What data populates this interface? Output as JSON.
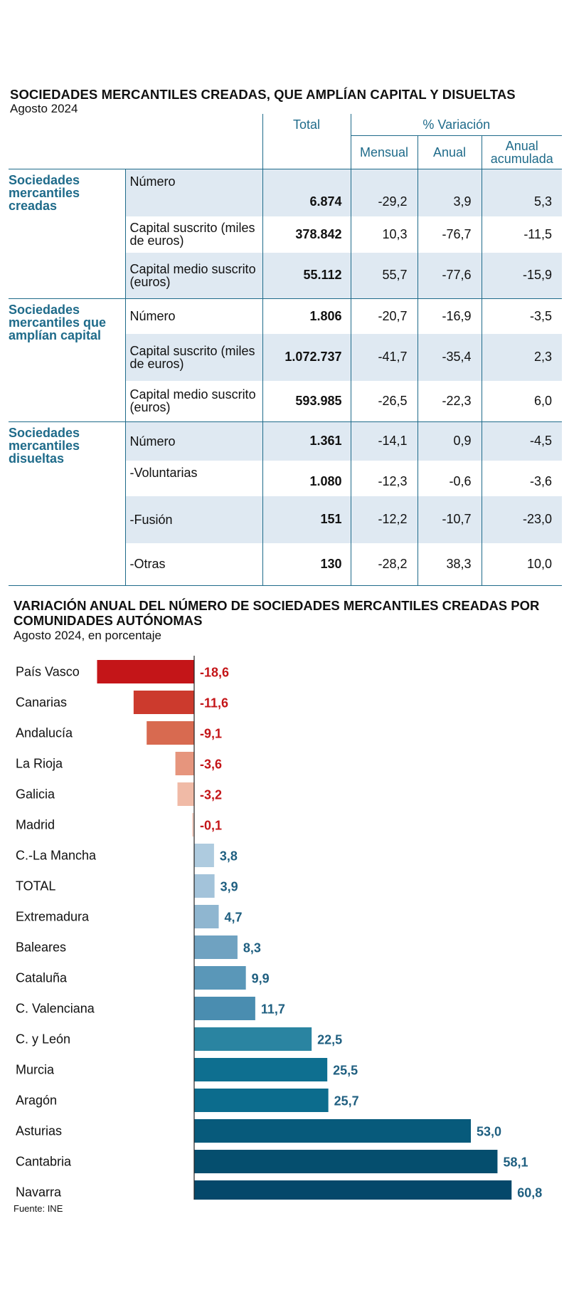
{
  "table": {
    "title": "SOCIEDADES MERCANTILES CREADAS, QUE AMPLÍAN CAPITAL Y DISUELTAS",
    "subtitle": "Agosto 2024",
    "headers": {
      "total": "Total",
      "variacion": "% Variación",
      "mensual": "Mensual",
      "anual": "Anual",
      "anual_acumulada": "Anual acumulada"
    },
    "groups": [
      {
        "name": "Sociedades mercantiles creadas",
        "rows": [
          {
            "label": "Número",
            "total": "6.874",
            "mensual": "-29,2",
            "anual": "3,9",
            "acumulada": "5,3"
          },
          {
            "label": "Capital suscrito (miles de euros)",
            "total": "378.842",
            "mensual": "10,3",
            "anual": "-76,7",
            "acumulada": "-11,5"
          },
          {
            "label": "Capital medio suscrito (euros)",
            "total": "55.112",
            "mensual": "55,7",
            "anual": "-77,6",
            "acumulada": "-15,9"
          }
        ]
      },
      {
        "name": "Sociedades mercantiles que amplían capital",
        "rows": [
          {
            "label": "Número",
            "total": "1.806",
            "mensual": "-20,7",
            "anual": "-16,9",
            "acumulada": "-3,5"
          },
          {
            "label": "Capital suscrito (miles de euros)",
            "total": "1.072.737",
            "mensual": "-41,7",
            "anual": "-35,4",
            "acumulada": "2,3"
          },
          {
            "label": "Capital medio suscrito (euros)",
            "total": "593.985",
            "mensual": "-26,5",
            "anual": "-22,3",
            "acumulada": "6,0"
          }
        ]
      },
      {
        "name": "Sociedades mercantiles disueltas",
        "rows": [
          {
            "label": "Número",
            "total": "1.361",
            "mensual": "-14,1",
            "anual": "0,9",
            "acumulada": "-4,5"
          },
          {
            "label": "-Voluntarias",
            "total": "1.080",
            "mensual": "-12,3",
            "anual": "-0,6",
            "acumulada": "-3,6"
          },
          {
            "label": "-Fusión",
            "total": "151",
            "mensual": "-12,2",
            "anual": "-10,7",
            "acumulada": "-23,0"
          },
          {
            "label": "-Otras",
            "total": "130",
            "mensual": "-28,2",
            "anual": "38,3",
            "acumulada": "10,0"
          }
        ]
      }
    ],
    "colors": {
      "accent": "#1f6b8a",
      "shade": "#dfe9f2"
    }
  },
  "chart_data": {
    "type": "bar",
    "orientation": "horizontal",
    "title": "VARIACIÓN ANUAL DEL NÚMERO DE SOCIEDADES MERCANTILES CREADAS POR COMUNIDADES AUTÓNOMAS",
    "subtitle": "Agosto 2024, en porcentaje",
    "categories": [
      "País Vasco",
      "Canarias",
      "Andalucía",
      "La Rioja",
      "Galicia",
      "Madrid",
      "C.-La Mancha",
      "TOTAL",
      "Extremadura",
      "Baleares",
      "Cataluña",
      "C. Valenciana",
      "C. y León",
      "Murcia",
      "Aragón",
      "Asturias",
      "Cantabria",
      "Navarra"
    ],
    "values": [
      -18.6,
      -11.6,
      -9.1,
      -3.6,
      -3.2,
      -0.1,
      3.8,
      3.9,
      4.7,
      8.3,
      9.9,
      11.7,
      22.5,
      25.5,
      25.7,
      53.0,
      58.1,
      60.8
    ],
    "value_labels": [
      "-18,6",
      "-11,6",
      "-9,1",
      "-3,6",
      "-3,2",
      "-0,1",
      "3,8",
      "3,9",
      "4,7",
      "8,3",
      "9,9",
      "11,7",
      "22,5",
      "25,5",
      "25,7",
      "53,0",
      "58,1",
      "60,8"
    ],
    "bar_colors": [
      "#c41518",
      "#cc3a2d",
      "#d86a50",
      "#e6957d",
      "#f0baa6",
      "#f6d4c8",
      "#aecbdf",
      "#a3c3da",
      "#8fb6d0",
      "#6fa2c1",
      "#5a97b8",
      "#4a8db0",
      "#2a84a1",
      "#0e6f90",
      "#0c6c8d",
      "#075a7b",
      "#054e6e",
      "#04486a"
    ],
    "negative_label_color": "#c41518",
    "positive_label_color": "#1f5f80",
    "xlim": [
      -20,
      62
    ],
    "source": "Fuente: INE"
  }
}
